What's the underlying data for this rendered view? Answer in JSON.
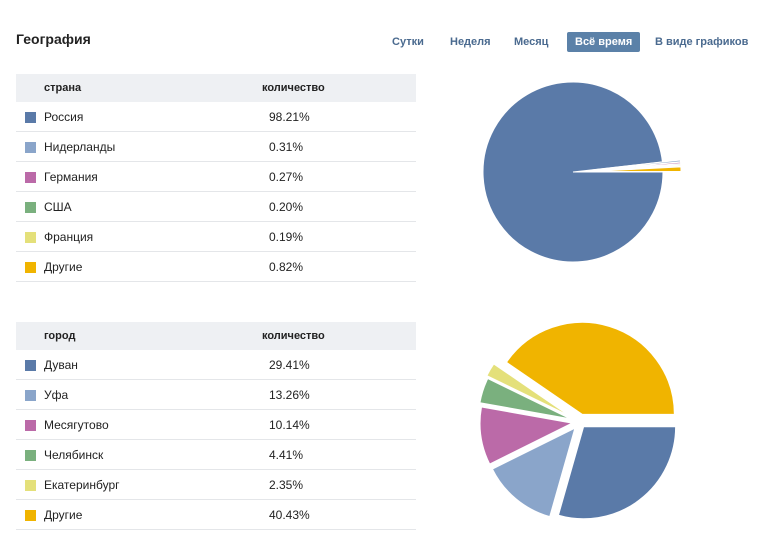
{
  "section": {
    "title": "География"
  },
  "tabs": [
    {
      "label": "Сутки",
      "active": false
    },
    {
      "label": "Неделя",
      "active": false
    },
    {
      "label": "Месяц",
      "active": false
    },
    {
      "label": "Всё время",
      "active": true
    },
    {
      "label": "В виде графиков",
      "active": false
    }
  ],
  "countries": {
    "col_name": "страна",
    "col_value": "количество",
    "rows": [
      {
        "name": "Россия",
        "value": "98.21%",
        "color": "#5a7aa8"
      },
      {
        "name": "Нидерланды",
        "value": "0.31%",
        "color": "#8aa5ca"
      },
      {
        "name": "Германия",
        "value": "0.27%",
        "color": "#bb6aa8"
      },
      {
        "name": "США",
        "value": "0.20%",
        "color": "#7ab07e"
      },
      {
        "name": "Франция",
        "value": "0.19%",
        "color": "#e4e07a"
      },
      {
        "name": "Другие",
        "value": "0.82%",
        "color": "#f0b400"
      }
    ]
  },
  "cities": {
    "col_name": "город",
    "col_value": "количество",
    "rows": [
      {
        "name": "Дуван",
        "value": "29.41%",
        "color": "#5a7aa8"
      },
      {
        "name": "Уфа",
        "value": "13.26%",
        "color": "#8aa5ca"
      },
      {
        "name": "Месягутово",
        "value": "10.14%",
        "color": "#bb6aa8"
      },
      {
        "name": "Челябинск",
        "value": "4.41%",
        "color": "#7ab07e"
      },
      {
        "name": "Екатеринбург",
        "value": "2.35%",
        "color": "#e4e07a"
      },
      {
        "name": "Другие",
        "value": "40.43%",
        "color": "#f0b400"
      }
    ]
  },
  "chart_data": [
    {
      "type": "pie",
      "categories": [
        "Россия",
        "Нидерланды",
        "Германия",
        "США",
        "Франция",
        "Другие"
      ],
      "values": [
        98.21,
        0.31,
        0.27,
        0.2,
        0.19,
        0.82
      ],
      "colors": [
        "#5a7aa8",
        "#8aa5ca",
        "#bb6aa8",
        "#7ab07e",
        "#e4e07a",
        "#f0b400"
      ]
    },
    {
      "type": "pie",
      "categories": [
        "Дуван",
        "Уфа",
        "Месягутово",
        "Челябинск",
        "Екатеринбург",
        "Другие"
      ],
      "values": [
        29.41,
        13.26,
        10.14,
        4.41,
        2.35,
        40.43
      ],
      "colors": [
        "#5a7aa8",
        "#8aa5ca",
        "#bb6aa8",
        "#7ab07e",
        "#e4e07a",
        "#f0b400"
      ]
    }
  ]
}
